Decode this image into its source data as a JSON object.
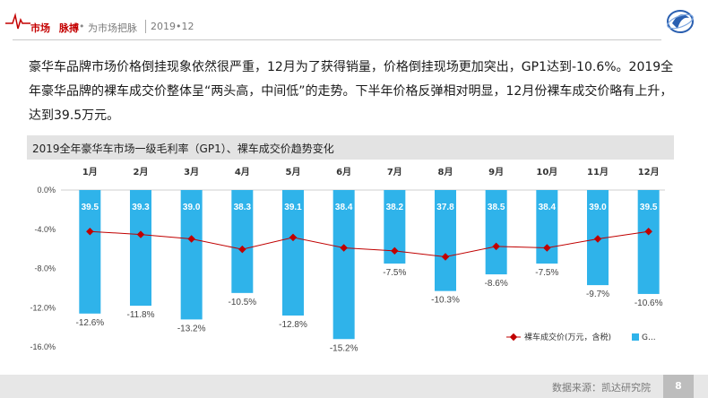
{
  "header": {
    "part1": "市场",
    "part2": "脉搏",
    "dot": "•",
    "part3": "为市场把脉",
    "date": "2019•12"
  },
  "paragraph": "豪华车品牌市场价格倒挂现象依然很严重，12月为了获得销量，价格倒挂现场更加突出，GP1达到-10.6%。2019全年豪华品牌的裸车成交价整体呈“两头高，中间低”的走势。下半年价格反弹相对明显，12月份裸车成交价略有上升，达到39.5万元。",
  "footer": {
    "source": "数据来源：凯达研究院",
    "page": "8"
  },
  "colors": {
    "bar": "#2fb3ea",
    "line": "#c00000",
    "title_bar": "#e3e3e3"
  },
  "chart_data": {
    "type": "bar",
    "title": "2019全年豪华车市场一级毛利率（GP1）、裸车成交价趋势变化",
    "categories": [
      "1月",
      "2月",
      "3月",
      "4月",
      "5月",
      "6月",
      "7月",
      "8月",
      "9月",
      "10月",
      "11月",
      "12月"
    ],
    "y_ticks": [
      "0.0%",
      "-4.0%",
      "-8.0%",
      "-12.0%",
      "-16.0%"
    ],
    "ylim": [
      -16,
      0
    ],
    "grid": false,
    "legend_position": "bottom-right",
    "series": [
      {
        "name": "G...",
        "kind": "bar",
        "values": [
          -12.6,
          -11.8,
          -13.2,
          -10.5,
          -12.8,
          -15.2,
          -7.5,
          -10.3,
          -8.6,
          -7.5,
          -9.7,
          -10.6
        ],
        "labels": [
          "-12.6%",
          "-11.8%",
          "-13.2%",
          "-10.5%",
          "-12.8%",
          "-15.2%",
          "-7.5%",
          "-10.3%",
          "-8.6%",
          "-7.5%",
          "-9.7%",
          "-10.6%"
        ]
      },
      {
        "name": "裸车成交价(万元，含税)",
        "kind": "line",
        "values": [
          39.5,
          39.3,
          39.0,
          38.3,
          39.1,
          38.4,
          38.2,
          37.8,
          38.5,
          38.4,
          39.0,
          39.5
        ],
        "labels": [
          "39.5",
          "39.3",
          "39.0",
          "38.3",
          "39.1",
          "38.4",
          "38.2",
          "37.8",
          "38.5",
          "38.4",
          "39.0",
          "39.5"
        ]
      }
    ]
  }
}
